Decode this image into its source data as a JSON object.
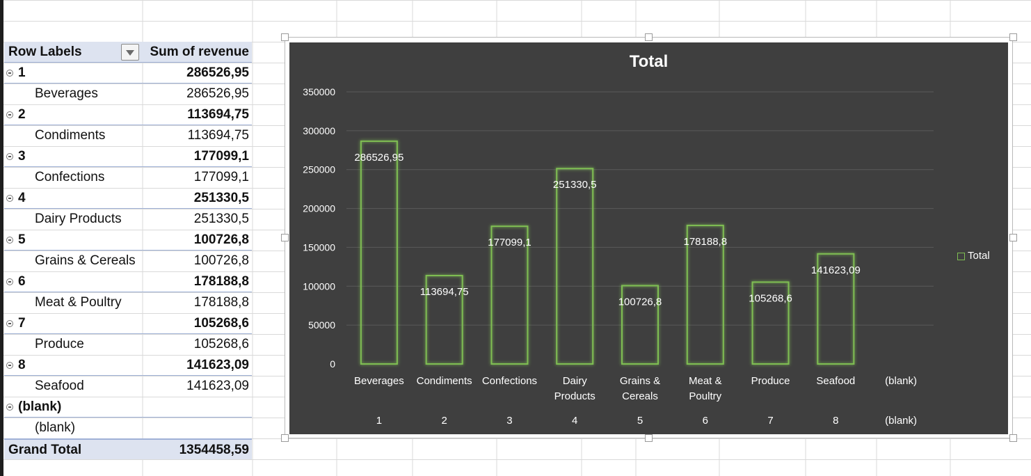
{
  "pivot": {
    "header": {
      "row_labels": "Row Labels",
      "sum_label": "Sum of revenue"
    },
    "groups": [
      {
        "label": "1",
        "total": "286526,95",
        "child": "Beverages",
        "child_value": "286526,95"
      },
      {
        "label": "2",
        "total": "113694,75",
        "child": "Condiments",
        "child_value": "113694,75"
      },
      {
        "label": "3",
        "total": "177099,1",
        "child": "Confections",
        "child_value": "177099,1"
      },
      {
        "label": "4",
        "total": "251330,5",
        "child": "Dairy Products",
        "child_value": "251330,5"
      },
      {
        "label": "5",
        "total": "100726,8",
        "child": "Grains & Cereals",
        "child_value": "100726,8"
      },
      {
        "label": "6",
        "total": "178188,8",
        "child": "Meat & Poultry",
        "child_value": "178188,8"
      },
      {
        "label": "7",
        "total": "105268,6",
        "child": "Produce",
        "child_value": "105268,6"
      },
      {
        "label": "8",
        "total": "141623,09",
        "child": "Seafood",
        "child_value": "141623,09"
      },
      {
        "label": "(blank)",
        "total": "",
        "child": "(blank)",
        "child_value": ""
      }
    ],
    "grand_total": {
      "label": "Grand Total",
      "value": "1354458,59"
    }
  },
  "chart_data": {
    "type": "bar",
    "title": "Total",
    "categories": [
      "Beverages",
      "Condiments",
      "Confections",
      "Dairy\nProducts",
      "Grains &\nCereals",
      "Meat &\nPoultry",
      "Produce",
      "Seafood",
      "(blank)"
    ],
    "outer_categories": [
      "1",
      "2",
      "3",
      "4",
      "5",
      "6",
      "7",
      "8",
      "(blank)"
    ],
    "series": [
      {
        "name": "Total",
        "values": [
          286526.95,
          113694.75,
          177099.1,
          251330.5,
          100726.8,
          178188.8,
          105268.6,
          141623.09,
          null
        ],
        "labels": [
          "286526,95",
          "113694,75",
          "177099,1",
          "251330,5",
          "100726,8",
          "178188,8",
          "105268,6",
          "141623,09",
          ""
        ]
      }
    ],
    "yticks": [
      "0",
      "50000",
      "100000",
      "150000",
      "200000",
      "250000",
      "300000",
      "350000"
    ],
    "ylim": [
      0,
      350000
    ],
    "grid": true,
    "legend": "right",
    "colors": {
      "background": "#3f3f3f",
      "bar_outline": "#7fbe52",
      "gridline": "#5a5a5a",
      "text": "#ffffff"
    }
  }
}
